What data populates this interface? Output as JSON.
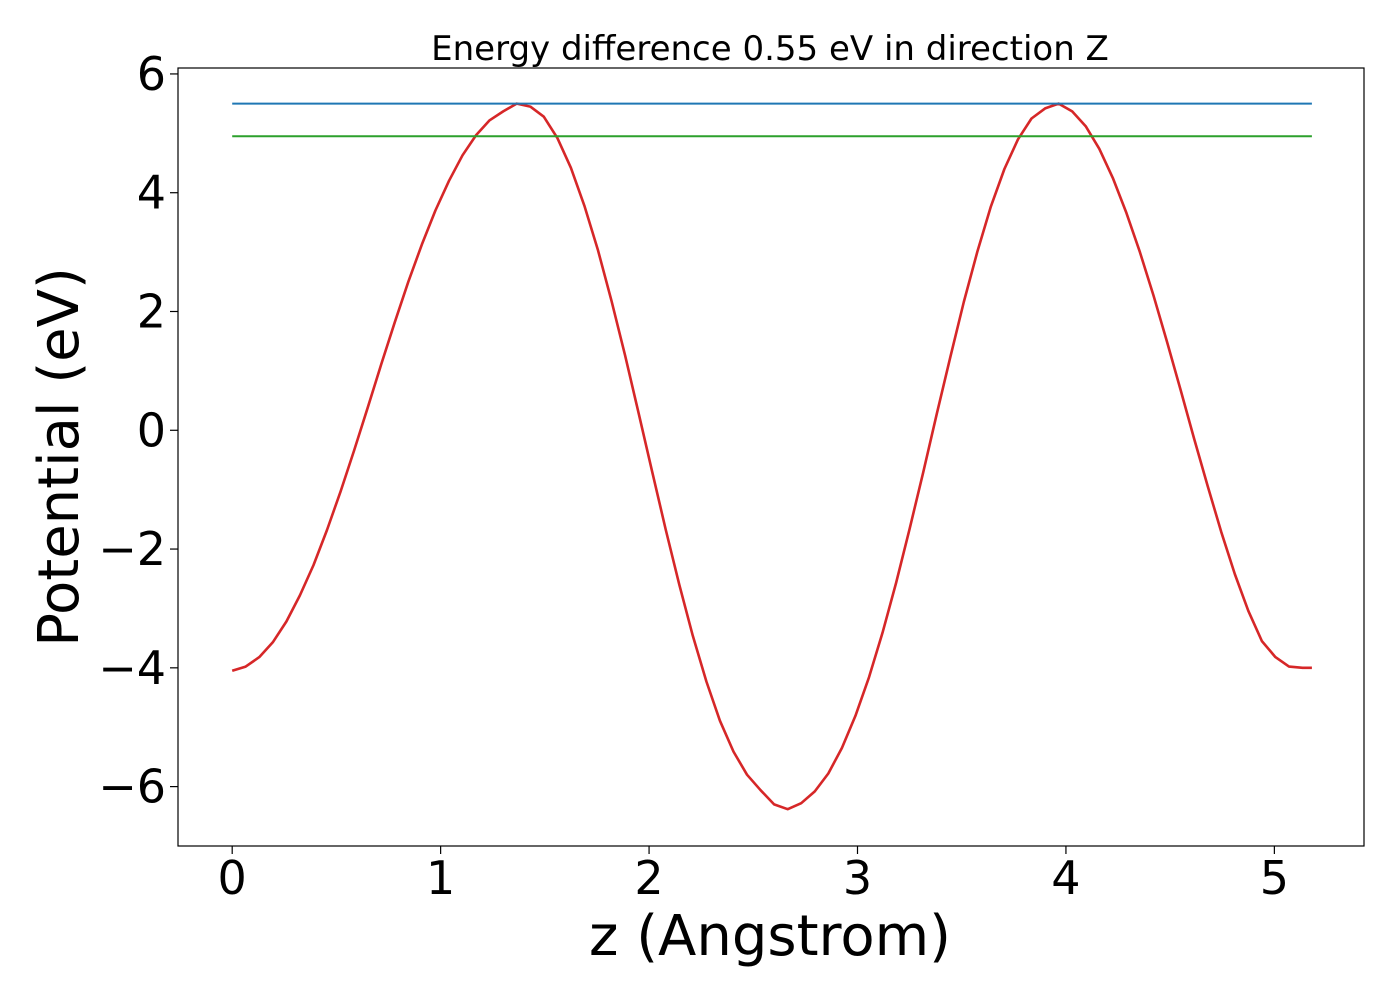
{
  "chart_data": {
    "type": "line",
    "title": "Energy difference 0.55 eV in direction Z",
    "xlabel": "z (Angstrom)",
    "ylabel": "Potential (eV)",
    "xlim": [
      -0.26,
      5.43
    ],
    "ylim": [
      -7.0,
      6.1
    ],
    "x_ticks": [
      0,
      1,
      2,
      3,
      4,
      5
    ],
    "x_tick_labels": [
      "0",
      "1",
      "2",
      "3",
      "4",
      "5"
    ],
    "y_ticks": [
      -6,
      -4,
      -2,
      0,
      2,
      4,
      6
    ],
    "y_tick_labels": [
      "−6",
      "−4",
      "−2",
      "0",
      "2",
      "4",
      "6"
    ],
    "grid": false,
    "legend": "none",
    "series": [
      {
        "color": "#d62728",
        "x": [
          0.0,
          0.065,
          0.13,
          0.195,
          0.26,
          0.325,
          0.39,
          0.455,
          0.52,
          0.585,
          0.65,
          0.715,
          0.78,
          0.845,
          0.91,
          0.975,
          1.04,
          1.105,
          1.17,
          1.235,
          1.3,
          1.365,
          1.43,
          1.495,
          1.56,
          1.625,
          1.69,
          1.755,
          1.82,
          1.885,
          1.95,
          2.015,
          2.08,
          2.145,
          2.21,
          2.275,
          2.34,
          2.405,
          2.47,
          2.535,
          2.6,
          2.665,
          2.73,
          2.795,
          2.86,
          2.925,
          2.99,
          3.055,
          3.12,
          3.185,
          3.25,
          3.315,
          3.38,
          3.445,
          3.51,
          3.575,
          3.64,
          3.705,
          3.77,
          3.835,
          3.9,
          3.965,
          4.03,
          4.095,
          4.16,
          4.225,
          4.29,
          4.355,
          4.42,
          4.485,
          4.55,
          4.615,
          4.68,
          4.745,
          4.81,
          4.875,
          4.94,
          5.005,
          5.07,
          5.135,
          5.18
        ],
        "y": [
          -4.05,
          -3.98,
          -3.82,
          -3.57,
          -3.22,
          -2.78,
          -2.27,
          -1.68,
          -1.03,
          -0.34,
          0.38,
          1.11,
          1.82,
          2.5,
          3.13,
          3.7,
          4.2,
          4.63,
          4.97,
          5.22,
          5.37,
          5.5,
          5.45,
          5.28,
          4.92,
          4.42,
          3.78,
          3.03,
          2.18,
          1.26,
          0.29,
          -0.7,
          -1.67,
          -2.6,
          -3.46,
          -4.23,
          -4.89,
          -5.41,
          -5.8,
          -6.06,
          -6.3,
          -6.38,
          -6.28,
          -6.08,
          -5.78,
          -5.35,
          -4.81,
          -4.16,
          -3.41,
          -2.57,
          -1.66,
          -0.71,
          0.27,
          1.23,
          2.16,
          3.01,
          3.77,
          4.4,
          4.9,
          5.25,
          5.42,
          5.5,
          5.37,
          5.12,
          4.74,
          4.25,
          3.66,
          3.0,
          2.27,
          1.49,
          0.68,
          -0.14,
          -0.94,
          -1.71,
          -2.42,
          -3.04,
          -3.55,
          -3.82,
          -3.98,
          -4.0,
          -4.0
        ]
      },
      {
        "color": "#1f77b4",
        "x": [
          0.0,
          5.18
        ],
        "y": [
          5.5,
          5.5
        ]
      },
      {
        "color": "#2ca02c",
        "x": [
          0.0,
          5.18
        ],
        "y": [
          4.95,
          4.95
        ]
      }
    ]
  }
}
